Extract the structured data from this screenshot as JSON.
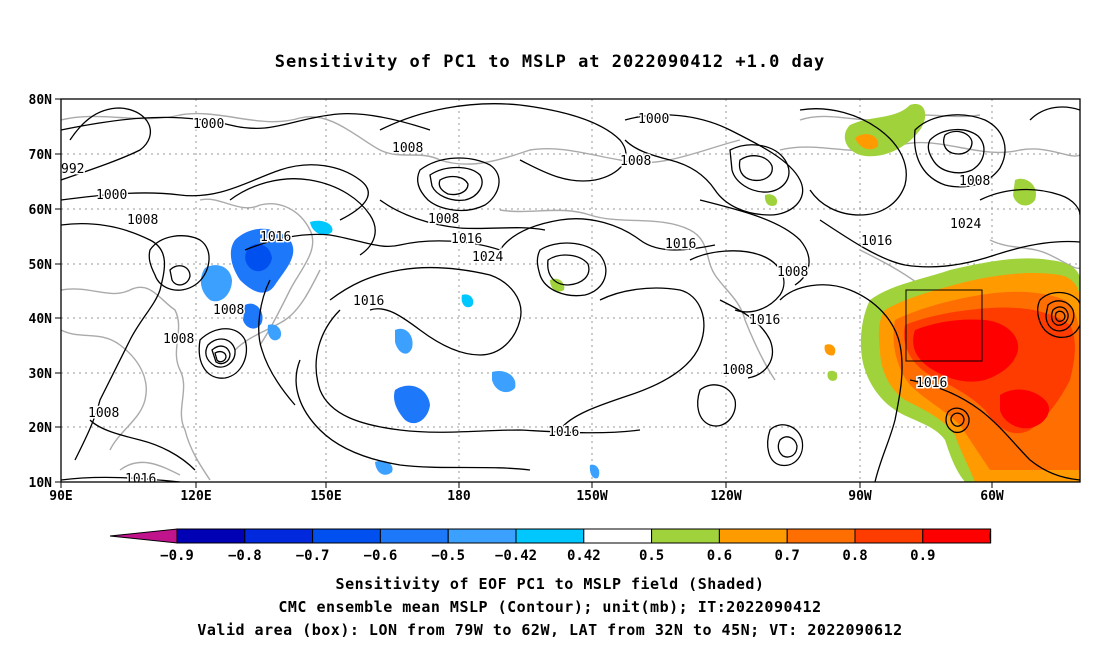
{
  "title": "Sensitivity of PC1 to MSLP at 2022090412 +1.0 day",
  "lat_labels": [
    "80N",
    "70N",
    "60N",
    "50N",
    "40N",
    "30N",
    "20N",
    "10N"
  ],
  "lon_labels": [
    "90E",
    "120E",
    "150E",
    "180",
    "150W",
    "120W",
    "90W",
    "60W"
  ],
  "contour_labels": {
    "c1000a": "1000",
    "c1008a": "1008",
    "c992": "992",
    "c1000b": "1000",
    "c1008b": "1008",
    "c1016a": "1016",
    "c1008c": "1008",
    "c1008d": "1008",
    "c1016b": "1016",
    "c1024a": "1024",
    "c1016c": "1016",
    "c1008e": "1008",
    "c1008f": "1008",
    "c1016d": "1016",
    "c1000c": "1000",
    "c1008g": "1008",
    "c1016e": "1016",
    "c1016f": "1016",
    "c1008h": "1008",
    "c1016g": "1016",
    "c1008i": "1008",
    "c1016h": "1016",
    "c1008j": "1008",
    "c1024b": "1024",
    "c1016i": "1016"
  },
  "colorbar": {
    "labels": [
      "−0.9",
      "−0.8",
      "−0.7",
      "−0.6",
      "−0.5",
      "−0.42",
      "0.42",
      "0.5",
      "0.6",
      "0.7",
      "0.8",
      "0.9"
    ],
    "colors": [
      "#0000b4",
      "#0028dc",
      "#0050f0",
      "#1e78fa",
      "#3ca0ff",
      "#00c8ff",
      "#ffffff",
      "#a0d23c",
      "#ff9b00",
      "#ff6e00",
      "#ff3c00",
      "#ff0000"
    ],
    "low_color": "#c0148c",
    "high_color": "#ffa0c8"
  },
  "captions": {
    "line1": "Sensitivity of EOF PC1 to MSLP field (Shaded)",
    "line2": "CMC ensemble mean MSLP (Contour); unit(mb); IT:2022090412",
    "line3": "Valid area (box): LON from 79W to 62W, LAT from 32N to 45N; VT: 2022090612"
  }
}
